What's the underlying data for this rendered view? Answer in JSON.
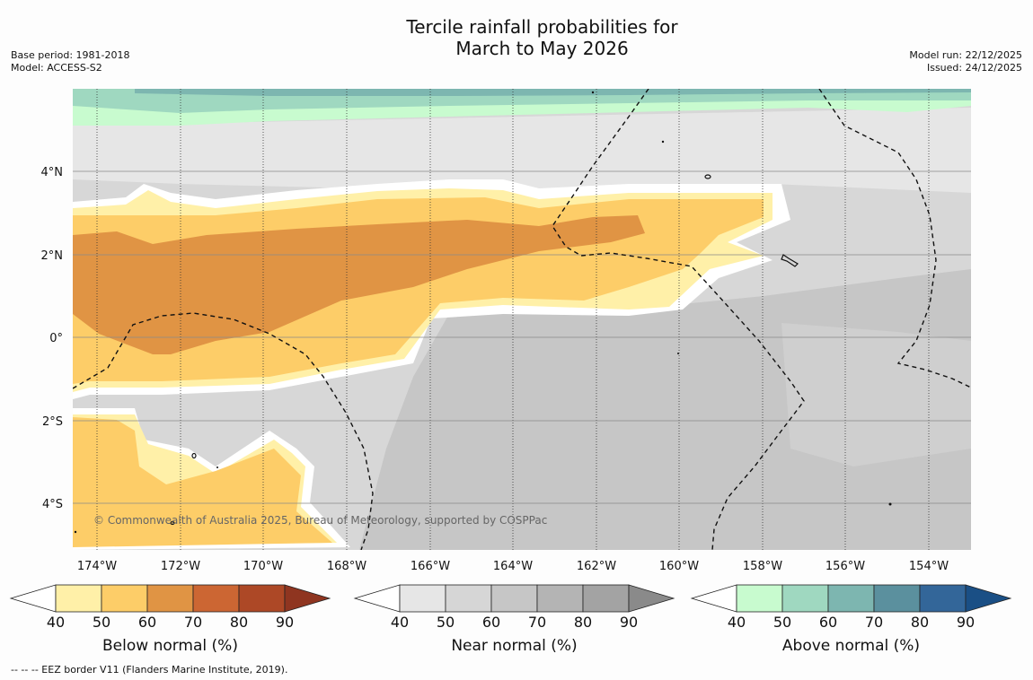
{
  "title": {
    "line1": "Tercile rainfall probabilities for",
    "line2": "March to May 2026"
  },
  "meta_left": {
    "base_period": "Base period: 1981-2018",
    "model": "Model: ACCESS-S2"
  },
  "meta_right": {
    "model_run": "Model run: 22/12/2025",
    "issued": "Issued: 24/12/2025"
  },
  "map": {
    "lon_ticks": [
      "174°W",
      "172°W",
      "170°W",
      "168°W",
      "166°W",
      "164°W",
      "162°W",
      "160°W",
      "158°W",
      "156°W",
      "154°W"
    ],
    "lat_ticks": [
      "4°N",
      "2°N",
      "0°",
      "2°S",
      "4°S"
    ],
    "lon_range": [
      -174.6,
      -153.0
    ],
    "lat_range": [
      -5.0,
      6.0
    ],
    "copyright": "© Commonwealth of Australia 2025, Bureau of Meteorology, supported by COSPPac"
  },
  "colorbars": {
    "below": {
      "title": "Below normal (%)",
      "ticks": [
        "40",
        "50",
        "60",
        "70",
        "80",
        "90"
      ],
      "colors": [
        "#fff0a8",
        "#fdcd68",
        "#e09444",
        "#cc6633",
        "#ad4826",
        "#8f3520"
      ]
    },
    "near": {
      "title": "Near normal (%)",
      "ticks": [
        "40",
        "50",
        "60",
        "70",
        "80",
        "90"
      ],
      "colors": [
        "#e6e6e6",
        "#d6d6d6",
        "#c6c6c6",
        "#b4b4b4",
        "#a3a3a3",
        "#8a8a8a"
      ]
    },
    "above": {
      "title": "Above normal (%)",
      "ticks": [
        "40",
        "50",
        "60",
        "70",
        "80",
        "90"
      ],
      "colors": [
        "#c8fbcf",
        "#9fd8c0",
        "#7db6b0",
        "#5b909e",
        "#336699",
        "#1a4f85"
      ]
    }
  },
  "footnote": "--  --  -- EEZ border V11 (Flanders Marine Institute, 2019)."
}
